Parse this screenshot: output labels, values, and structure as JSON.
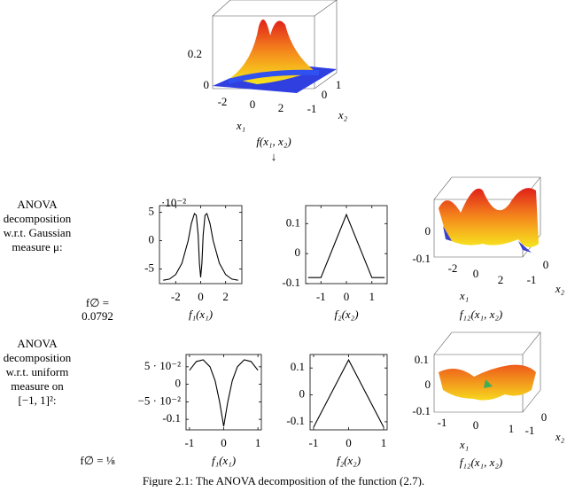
{
  "chart_data": [
    {
      "type": "line",
      "xlabel": "f₁(x₁)",
      "y_multiplier": "·10⁻²",
      "x": [
        -3,
        -2.5,
        -2,
        -1.5,
        -1,
        -0.75,
        -0.5,
        -0.35,
        -0.2,
        -0.1,
        0,
        0.1,
        0.2,
        0.35,
        0.5,
        0.75,
        1,
        1.5,
        2,
        2.5,
        3
      ],
      "values": [
        -7,
        -6.8,
        -6,
        -4,
        0,
        3,
        4.8,
        4.5,
        1,
        -4,
        -6.5,
        -4,
        1,
        4.5,
        4.8,
        3,
        0,
        -4,
        -6,
        -6.8,
        -7
      ],
      "xlim": [
        -3.3,
        3.3
      ],
      "ylim": [
        -7.6,
        6.2
      ],
      "xticks": [
        -2,
        0,
        2
      ],
      "yticks": [
        -5,
        0,
        5
      ],
      "color": "#000000"
    },
    {
      "type": "line",
      "xlabel": "f₂(x₂)",
      "x": [
        -1.5,
        -1,
        0,
        1,
        1.5
      ],
      "values": [
        -0.08,
        -0.08,
        0.13,
        -0.08,
        -0.08
      ],
      "xlim": [
        -1.6,
        1.6
      ],
      "ylim": [
        -0.1,
        0.16
      ],
      "xticks": [
        -1,
        0,
        1
      ],
      "yticks": [
        -0.1,
        0,
        0.1
      ],
      "color": "#000000"
    },
    {
      "type": "line",
      "xlabel": "f₁(x₁)",
      "x": [
        -1,
        -0.8,
        -0.6,
        -0.4,
        -0.25,
        -0.12,
        0,
        0.12,
        0.25,
        0.4,
        0.6,
        0.8,
        1
      ],
      "values": [
        0.04,
        0.065,
        0.07,
        0.05,
        0.01,
        -0.05,
        -0.12,
        -0.05,
        0.01,
        0.05,
        0.07,
        0.065,
        0.04
      ],
      "xlim": [
        -1.1,
        1.1
      ],
      "ylim": [
        -0.13,
        0.085
      ],
      "xticks": [
        -1,
        0,
        1
      ],
      "yticks": [
        -0.1,
        {
          "value": -0.05,
          "label": "−5 · 10⁻²"
        },
        0,
        {
          "value": 0.05,
          "label": "5 · 10⁻²"
        }
      ],
      "color": "#000000"
    },
    {
      "type": "line",
      "xlabel": "f₂(x₂)",
      "x": [
        -1,
        0,
        1
      ],
      "values": [
        -0.12,
        0.13,
        -0.12
      ],
      "xlim": [
        -1.1,
        1.1
      ],
      "ylim": [
        -0.13,
        0.15
      ],
      "xticks": [
        -1,
        0,
        1
      ],
      "yticks": [
        -0.1,
        0,
        0.1
      ],
      "color": "#000000"
    }
  ],
  "surfaces": [
    {
      "zticks": [
        0.2,
        0
      ],
      "x1ticks": [
        -2,
        0,
        2
      ],
      "x2ticks": [
        -1,
        0,
        1
      ],
      "x1label": "x₁",
      "x2label": "x₂",
      "title": "f(x₁, x₂)"
    },
    {
      "zticks": [
        0,
        -0.1
      ],
      "x1ticks": [
        -2,
        0,
        2
      ],
      "x2ticks": [
        -1,
        0
      ],
      "x1label": "x₁",
      "x2label": "x₂",
      "title": "f₁₂(x₁, x₂)"
    },
    {
      "zticks": [
        0.1,
        0,
        -0.1
      ],
      "x1ticks": [
        -1,
        0,
        1
      ],
      "x2ticks": [
        -1,
        0
      ],
      "x1label": "x₁",
      "x2label": "x₂",
      "title": "f₁₂(x₁, x₂)"
    }
  ],
  "rows": [
    {
      "label": [
        "ANOVA",
        "decomposition",
        "w.r.t. Gaussian",
        "measure μ:"
      ],
      "f_empty": [
        "f∅ =",
        "0.0792"
      ]
    },
    {
      "label": [
        "ANOVA",
        "decomposition",
        "w.r.t. uniform",
        "measure on",
        "[−1, 1]²:"
      ],
      "f_empty": [
        "f∅ = ⅛"
      ]
    }
  ],
  "arrow": "↓",
  "caption": "Figure 2.1: The ANOVA decomposition of the function (2.7)."
}
